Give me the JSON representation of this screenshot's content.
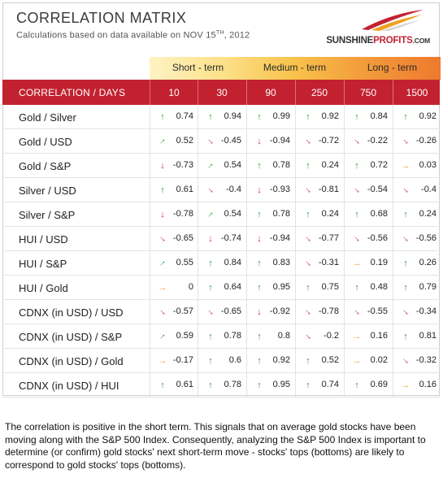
{
  "title": "CORRELATION MATRIX",
  "subtitle_prefix": "Calculations based on data available on  NOV 15",
  "subtitle_sup": "TH",
  "subtitle_suffix": ", 2012",
  "logo": {
    "brand_a": "SUNSHINE",
    "brand_b": "PROFITS",
    "brand_c": ".COM"
  },
  "bands": [
    {
      "label": "Short - term"
    },
    {
      "label": "Medium - term"
    },
    {
      "label": "Long - term"
    }
  ],
  "header": {
    "label": "CORRELATION / DAYS",
    "columns": [
      "10",
      "30",
      "90",
      "250",
      "750",
      "1500"
    ]
  },
  "rows": [
    {
      "label": "Gold / Silver",
      "cells": [
        [
          "0.74",
          "up"
        ],
        [
          "0.94",
          "up"
        ],
        [
          "0.99",
          "up"
        ],
        [
          "0.92",
          "up"
        ],
        [
          "0.84",
          "up"
        ],
        [
          "0.92",
          "up"
        ]
      ]
    },
    {
      "label": "Gold / USD",
      "cells": [
        [
          "0.52",
          "diag-up"
        ],
        [
          "-0.45",
          "diag-down"
        ],
        [
          "-0.94",
          "down"
        ],
        [
          "-0.72",
          "diag-down"
        ],
        [
          "-0.22",
          "diag-down"
        ],
        [
          "-0.26",
          "diag-down"
        ]
      ]
    },
    {
      "label": "Gold / S&P",
      "cells": [
        [
          "-0.73",
          "down"
        ],
        [
          "0.54",
          "diag-up"
        ],
        [
          "0.78",
          "up"
        ],
        [
          "0.24",
          "up"
        ],
        [
          "0.72",
          "up"
        ],
        [
          "0.03",
          "flat"
        ]
      ]
    },
    {
      "label": "Silver / USD",
      "cells": [
        [
          "0.61",
          "up"
        ],
        [
          "-0.4",
          "diag-down"
        ],
        [
          "-0.93",
          "down"
        ],
        [
          "-0.81",
          "diag-down"
        ],
        [
          "-0.54",
          "diag-down"
        ],
        [
          "-0.4",
          "diag-down"
        ]
      ]
    },
    {
      "label": "Silver / S&P",
      "cells": [
        [
          "-0.78",
          "down"
        ],
        [
          "0.54",
          "diag-up"
        ],
        [
          "0.78",
          "up"
        ],
        [
          "0.24",
          "up"
        ],
        [
          "0.68",
          "up"
        ],
        [
          "0.24",
          "up"
        ]
      ]
    },
    {
      "label": "HUI / USD",
      "cells": [
        [
          "-0.65",
          "diag-down"
        ],
        [
          "-0.74",
          "down"
        ],
        [
          "-0.94",
          "down"
        ],
        [
          "-0.77",
          "diag-down"
        ],
        [
          "-0.56",
          "diag-down"
        ],
        [
          "-0.56",
          "diag-down"
        ]
      ]
    },
    {
      "label": "HUI / S&P",
      "cells": [
        [
          "0.55",
          "diag-up"
        ],
        [
          "0.84",
          "up"
        ],
        [
          "0.83",
          "up"
        ],
        [
          "-0.31",
          "diag-down"
        ],
        [
          "0.19",
          "flat"
        ],
        [
          "0.26",
          "up"
        ]
      ]
    },
    {
      "label": "HUI / Gold",
      "cells": [
        [
          "0",
          "flat"
        ],
        [
          "0.64",
          "up"
        ],
        [
          "0.95",
          "up"
        ],
        [
          "0.75",
          "up"
        ],
        [
          "0.48",
          "up"
        ],
        [
          "0.79",
          "up"
        ]
      ]
    },
    {
      "label": "CDNX (in USD) / USD",
      "cells": [
        [
          "-0.57",
          "diag-down"
        ],
        [
          "-0.65",
          "diag-down"
        ],
        [
          "-0.92",
          "down"
        ],
        [
          "-0.78",
          "diag-down"
        ],
        [
          "-0.55",
          "diag-down"
        ],
        [
          "-0.34",
          "diag-down"
        ]
      ]
    },
    {
      "label": "CDNX (in USD) / S&P",
      "cells": [
        [
          "0.59",
          "diag-up"
        ],
        [
          "0.78",
          "up"
        ],
        [
          "0.8",
          "up"
        ],
        [
          "-0.2",
          "diag-down"
        ],
        [
          "0.16",
          "flat"
        ],
        [
          "0.81",
          "up"
        ]
      ]
    },
    {
      "label": "CDNX (in USD) / Gold",
      "cells": [
        [
          "-0.17",
          "flat"
        ],
        [
          "0.6",
          "up"
        ],
        [
          "0.92",
          "up"
        ],
        [
          "0.52",
          "up"
        ],
        [
          "0.02",
          "flat"
        ],
        [
          "-0.32",
          "diag-down"
        ]
      ]
    },
    {
      "label": "CDNX (in USD) / HUI",
      "cells": [
        [
          "0.61",
          "up"
        ],
        [
          "0.78",
          "up"
        ],
        [
          "0.95",
          "up"
        ],
        [
          "0.74",
          "up"
        ],
        [
          "0.69",
          "up"
        ],
        [
          "0.16",
          "flat"
        ]
      ]
    }
  ],
  "caption": "The correlation is positive in the short term. This signals that on average gold stocks have been moving along with the S&P 500 Index. Consequently, analyzing the S&P 500 Index is important to determine (or confirm) gold stocks' next short-term move - stocks' tops (bottoms) are likely to correspond to gold stocks' tops (bottoms)."
}
